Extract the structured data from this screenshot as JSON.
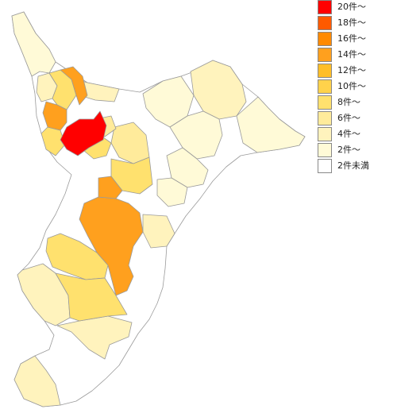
{
  "legend": [
    {
      "label": "20件～",
      "color": "#ff0000"
    },
    {
      "label": "18件～",
      "color": "#ff5a00"
    },
    {
      "label": "16件～",
      "color": "#ff8a00"
    },
    {
      "label": "14件～",
      "color": "#ffa01e"
    },
    {
      "label": "12件～",
      "color": "#ffbe28"
    },
    {
      "label": "10件～",
      "color": "#ffd24b"
    },
    {
      "label": "8件～",
      "color": "#ffe16e"
    },
    {
      "label": "6件～",
      "color": "#ffeb9b"
    },
    {
      "label": "4件～",
      "color": "#fff3bd"
    },
    {
      "label": "2件～",
      "color": "#fffad7"
    },
    {
      "label": "2件未満",
      "color": "#ffffff"
    }
  ]
}
